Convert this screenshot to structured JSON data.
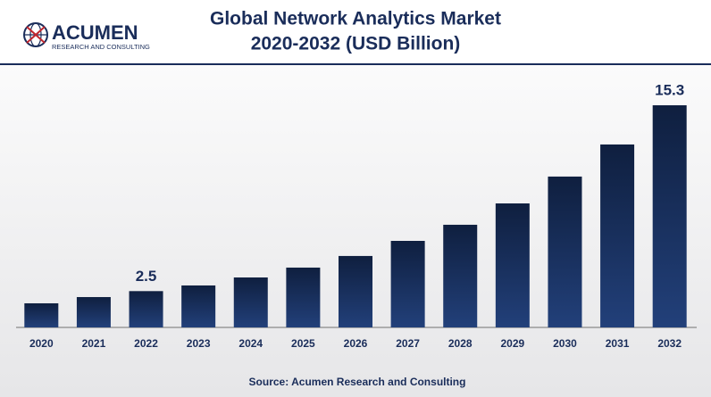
{
  "logo": {
    "name": "ACUMEN",
    "tagline": "RESEARCH AND CONSULTING"
  },
  "chart_data": {
    "type": "bar",
    "title": "Global Network Analytics Market",
    "subtitle": "2020-2032 (USD Billion)",
    "categories": [
      "2020",
      "2021",
      "2022",
      "2023",
      "2024",
      "2025",
      "2026",
      "2027",
      "2028",
      "2029",
      "2030",
      "2031",
      "2032"
    ],
    "values": [
      1.66,
      2.09,
      2.5,
      2.89,
      3.44,
      4.12,
      4.92,
      5.96,
      7.07,
      8.54,
      10.39,
      12.6,
      15.3
    ],
    "value_labels": [
      null,
      null,
      "2.5",
      null,
      null,
      null,
      null,
      null,
      null,
      null,
      null,
      null,
      "15.3"
    ],
    "color": "#132a55",
    "source": "Source: Acumen Research and Consulting"
  }
}
